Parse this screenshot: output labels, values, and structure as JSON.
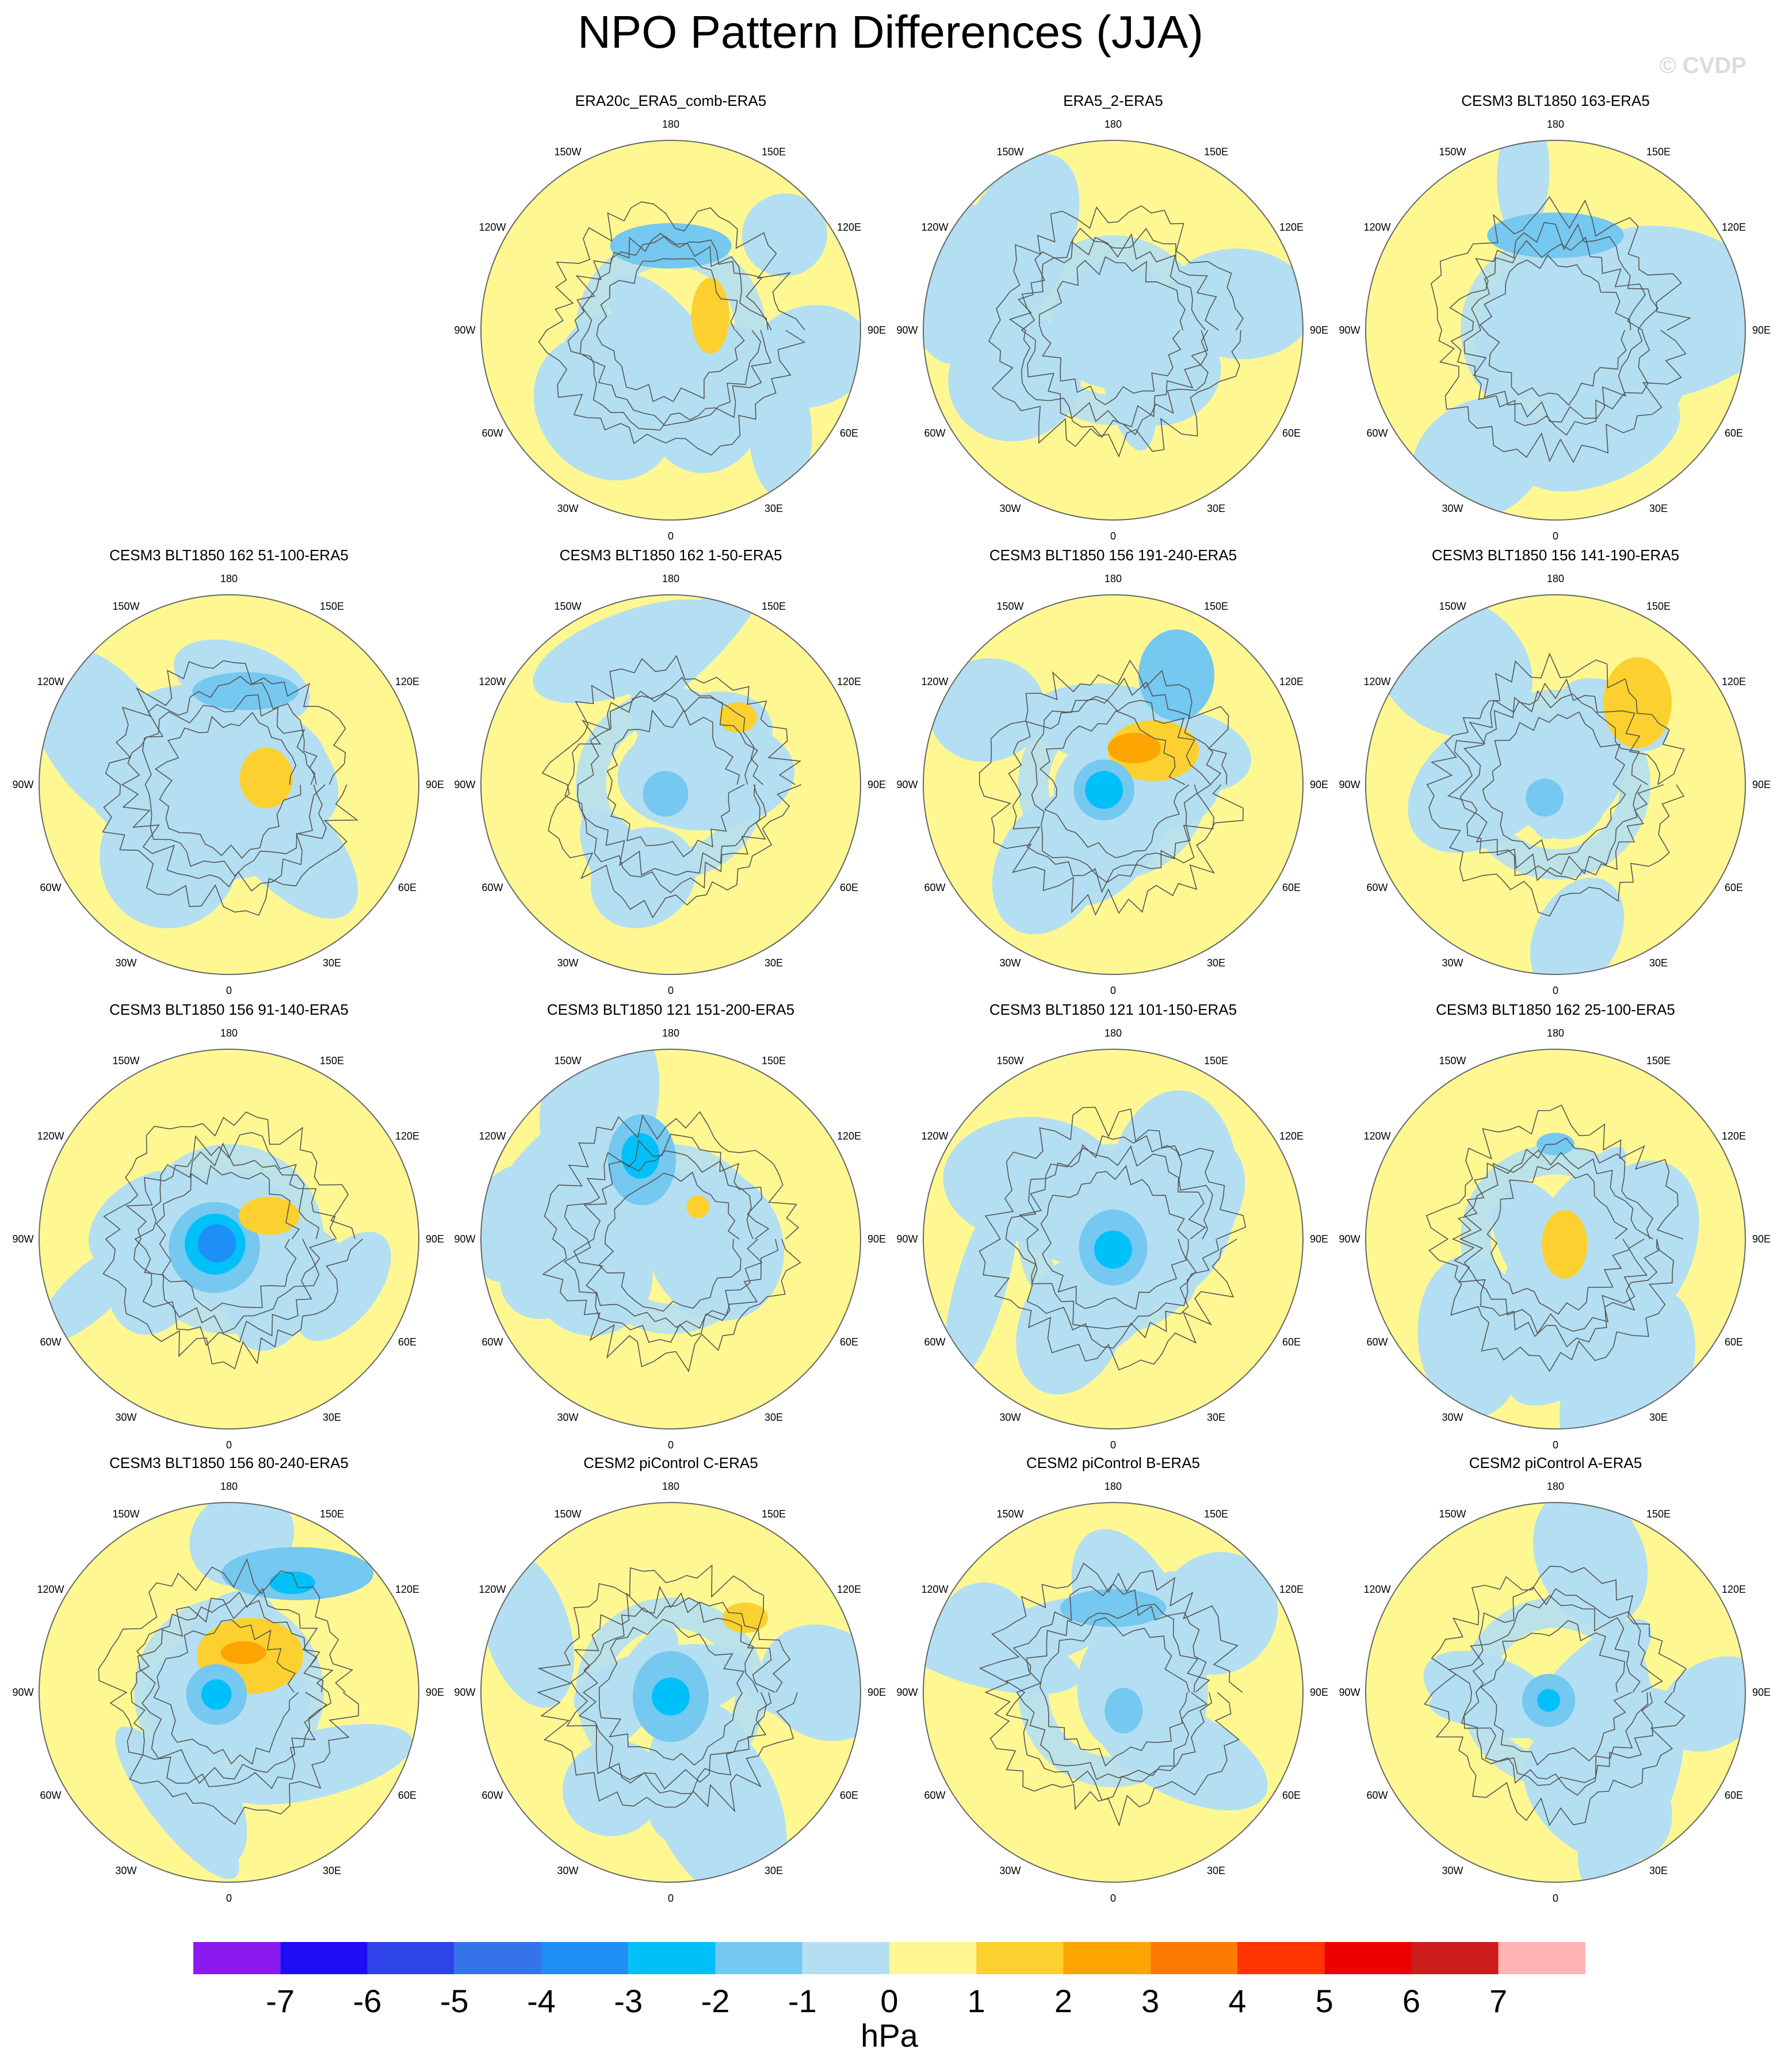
{
  "title": "NPO Pattern Differences (JJA)",
  "watermark": "© CVDP",
  "panels": [
    {
      "title": "ERA20c_ERA5_comb-ERA5",
      "row": 0,
      "col": 1,
      "features": [
        {
          "v": -1.5,
          "lon": 180,
          "lat": 50,
          "rx": 0.16,
          "ry": 0.06
        },
        {
          "v": 1.5,
          "lon": 110,
          "lat": 70,
          "rx": 0.05,
          "ry": 0.1
        }
      ]
    },
    {
      "title": "ERA5_2-ERA5",
      "row": 0,
      "col": 2,
      "features": []
    },
    {
      "title": "CESM3 BLT1850 163-ERA5",
      "row": 0,
      "col": 3,
      "features": [
        {
          "v": -1.5,
          "lon": 180,
          "lat": 45,
          "rx": 0.18,
          "ry": 0.06
        }
      ]
    },
    {
      "title": "CESM3 BLT1850 162 51-100-ERA5",
      "row": 1,
      "col": 0,
      "features": [
        {
          "v": -1.5,
          "lon": 170,
          "lat": 45,
          "rx": 0.14,
          "ry": 0.05
        },
        {
          "v": 1.5,
          "lon": 100,
          "lat": 72,
          "rx": 0.07,
          "ry": 0.08
        }
      ]
    },
    {
      "title": "CESM3 BLT1850 162 1-50-ERA5",
      "row": 1,
      "col": 1,
      "features": [
        {
          "v": -1.5,
          "lon": 330,
          "lat": 85,
          "rx": 0.06,
          "ry": 0.06
        },
        {
          "v": 1.5,
          "lon": 135,
          "lat": 45,
          "rx": 0.05,
          "ry": 0.04
        }
      ]
    },
    {
      "title": "CESM3 BLT1850 156 191-240-ERA5",
      "row": 1,
      "col": 2,
      "features": [
        {
          "v": -1.5,
          "lon": 150,
          "lat": 30,
          "rx": 0.1,
          "ry": 0.12
        },
        {
          "v": 1.5,
          "lon": 130,
          "lat": 65,
          "rx": 0.12,
          "ry": 0.08
        },
        {
          "v": 2.5,
          "lon": 150,
          "lat": 70,
          "rx": 0.07,
          "ry": 0.04
        },
        {
          "v": -1.5,
          "lon": 300,
          "lat": 85,
          "rx": 0.08,
          "ry": 0.08
        },
        {
          "v": -2.5,
          "lon": 300,
          "lat": 85,
          "rx": 0.05,
          "ry": 0.05
        }
      ]
    },
    {
      "title": "CESM3 BLT1850 156 141-190-ERA5",
      "row": 1,
      "col": 3,
      "features": [
        {
          "v": 1.5,
          "lon": 135,
          "lat": 35,
          "rx": 0.09,
          "ry": 0.12
        },
        {
          "v": -1.5,
          "lon": 320,
          "lat": 82,
          "rx": 0.05,
          "ry": 0.05
        }
      ]
    },
    {
      "title": "CESM3 BLT1850 156 91-140-ERA5",
      "row": 2,
      "col": 0,
      "features": [
        {
          "v": -1.5,
          "lon": 300,
          "lat": 82,
          "rx": 0.12,
          "ry": 0.12
        },
        {
          "v": -2.5,
          "lon": 290,
          "lat": 83,
          "rx": 0.08,
          "ry": 0.08
        },
        {
          "v": -3.5,
          "lon": 290,
          "lat": 84,
          "rx": 0.05,
          "ry": 0.05
        },
        {
          "v": 1.5,
          "lon": 120,
          "lat": 68,
          "rx": 0.08,
          "ry": 0.05
        }
      ]
    },
    {
      "title": "CESM3 BLT1850 121 151-200-ERA5",
      "row": 2,
      "col": 1,
      "features": [
        {
          "v": -1.5,
          "lon": 200,
          "lat": 50,
          "rx": 0.09,
          "ry": 0.12
        },
        {
          "v": -2.5,
          "lon": 200,
          "lat": 48,
          "rx": 0.05,
          "ry": 0.06
        },
        {
          "v": 1.5,
          "lon": 140,
          "lat": 70,
          "rx": 0.03,
          "ry": 0.03
        }
      ]
    },
    {
      "title": "CESM3 BLT1850 121 101-150-ERA5",
      "row": 2,
      "col": 2,
      "features": [
        {
          "v": -1.5,
          "lon": 0,
          "lat": 86,
          "rx": 0.09,
          "ry": 0.1
        },
        {
          "v": -2.5,
          "lon": 0,
          "lat": 85,
          "rx": 0.05,
          "ry": 0.05
        }
      ]
    },
    {
      "title": "CESM3 BLT1850 162 25-100-ERA5",
      "row": 2,
      "col": 3,
      "features": [
        {
          "v": -1.5,
          "lon": 180,
          "lat": 45,
          "rx": 0.05,
          "ry": 0.03
        },
        {
          "v": 1.5,
          "lon": 60,
          "lat": 85,
          "rx": 0.06,
          "ry": 0.09
        }
      ]
    },
    {
      "title": "CESM3 BLT1850 156 80-240-ERA5",
      "row": 3,
      "col": 0,
      "features": [
        {
          "v": -1.5,
          "lon": 150,
          "lat": 25,
          "rx": 0.2,
          "ry": 0.07
        },
        {
          "v": -2.5,
          "lon": 150,
          "lat": 30,
          "rx": 0.06,
          "ry": 0.03
        },
        {
          "v": 1.5,
          "lon": 150,
          "lat": 70,
          "rx": 0.14,
          "ry": 0.1
        },
        {
          "v": 2.5,
          "lon": 160,
          "lat": 70,
          "rx": 0.06,
          "ry": 0.03
        },
        {
          "v": -1.5,
          "lon": 280,
          "lat": 84,
          "rx": 0.08,
          "ry": 0.08
        },
        {
          "v": -2.5,
          "lon": 280,
          "lat": 84,
          "rx": 0.04,
          "ry": 0.04
        }
      ]
    },
    {
      "title": "CESM2 piControl C-ERA5",
      "row": 3,
      "col": 1,
      "features": [
        {
          "v": -1.5,
          "lon": 0,
          "lat": 88,
          "rx": 0.1,
          "ry": 0.12
        },
        {
          "v": -2.5,
          "lon": 0,
          "lat": 88,
          "rx": 0.05,
          "ry": 0.05
        },
        {
          "v": 1.5,
          "lon": 135,
          "lat": 40,
          "rx": 0.06,
          "ry": 0.04
        }
      ]
    },
    {
      "title": "CESM2 piControl B-ERA5",
      "row": 3,
      "col": 2,
      "features": [
        {
          "v": -1.5,
          "lon": 180,
          "lat": 50,
          "rx": 0.14,
          "ry": 0.05
        },
        {
          "v": -1.5,
          "lon": 30,
          "lat": 80,
          "rx": 0.05,
          "ry": 0.06
        }
      ]
    },
    {
      "title": "CESM2 piControl A-ERA5",
      "row": 3,
      "col": 3,
      "features": [
        {
          "v": -1.5,
          "lon": 320,
          "lat": 85,
          "rx": 0.07,
          "ry": 0.07
        },
        {
          "v": -2.5,
          "lon": 320,
          "lat": 85,
          "rx": 0.03,
          "ry": 0.03
        }
      ]
    }
  ],
  "lon_labels": [
    "180",
    "150E",
    "120E",
    "90E",
    "60E",
    "30E",
    "0",
    "30W",
    "60W",
    "90W",
    "120W",
    "150W"
  ],
  "colorbar": {
    "unit": "hPa",
    "labels": [
      "-7",
      "-6",
      "-5",
      "-4",
      "-3",
      "-2",
      "-1",
      "0",
      "1",
      "2",
      "3",
      "4",
      "5",
      "6",
      "7"
    ],
    "colors": [
      "#8b1aef",
      "#1f0cf5",
      "#2e44e8",
      "#3573ea",
      "#1e8ff7",
      "#00c0fa",
      "#75c8f0",
      "#b4dff2",
      "#fff892",
      "#fcd02e",
      "#fca500",
      "#ff7a00",
      "#ff3300",
      "#ec0000",
      "#cc1c1c",
      "#ffb4b4"
    ]
  }
}
